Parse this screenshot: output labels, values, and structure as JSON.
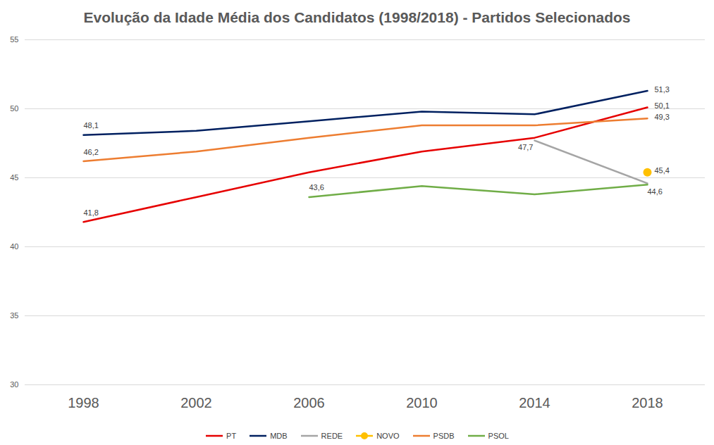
{
  "chart_data": {
    "type": "line",
    "title": "Evolução da Idade Média dos Candidatos (1998/2018) - Partidos Selecionados",
    "categories": [
      "1998",
      "2002",
      "2006",
      "2010",
      "2014",
      "2018"
    ],
    "series": [
      {
        "name": "PT",
        "color": "#e60000",
        "values": [
          41.8,
          43.6,
          45.4,
          46.9,
          47.9,
          50.1
        ],
        "value_labels": [
          "41,8",
          null,
          null,
          null,
          null,
          "50,1"
        ]
      },
      {
        "name": "MDB",
        "color": "#002060",
        "values": [
          48.1,
          48.4,
          49.1,
          49.8,
          49.6,
          51.3
        ],
        "value_labels": [
          "48,1",
          null,
          null,
          null,
          null,
          "51,3"
        ]
      },
      {
        "name": "REDE",
        "color": "#a5a5a5",
        "values": [
          null,
          null,
          null,
          null,
          47.7,
          44.6
        ],
        "value_labels": [
          null,
          null,
          null,
          null,
          "47,7",
          "44,6"
        ]
      },
      {
        "name": "NOVO",
        "color": "#ffc000",
        "marker": "circle",
        "values": [
          null,
          null,
          null,
          null,
          null,
          45.4
        ],
        "value_labels": [
          null,
          null,
          null,
          null,
          null,
          "45,4"
        ]
      },
      {
        "name": "PSDB",
        "color": "#ed7d31",
        "values": [
          46.2,
          46.9,
          47.9,
          48.8,
          48.8,
          49.3
        ],
        "value_labels": [
          "46,2",
          null,
          null,
          null,
          null,
          "49,3"
        ]
      },
      {
        "name": "PSOL",
        "color": "#70ad47",
        "values": [
          null,
          null,
          43.6,
          44.4,
          43.8,
          44.5
        ],
        "value_labels": [
          null,
          null,
          "43,6",
          null,
          null,
          null
        ]
      }
    ],
    "ylim": [
      30,
      55
    ],
    "yticks": [
      30,
      35,
      40,
      45,
      50,
      55
    ],
    "grid": true,
    "legend": "bottom",
    "data_labels": true
  }
}
